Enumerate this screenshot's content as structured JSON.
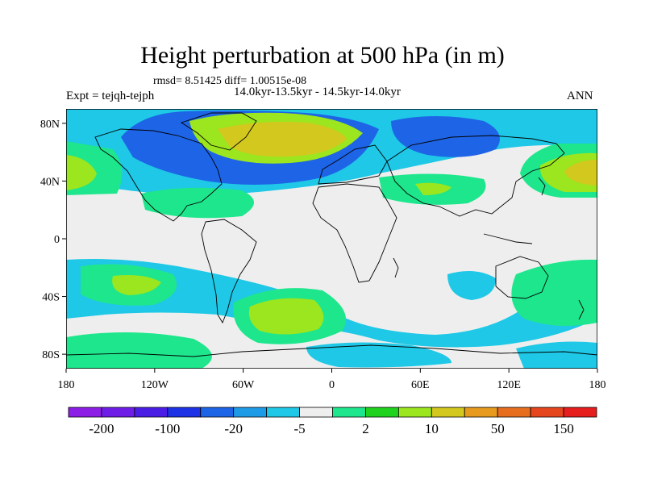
{
  "title": "Height perturbation at 500 hPa (in m)",
  "stats": "rmsd= 8.51425 diff= 1.00515e-08",
  "period": "14.0kyr-13.5kyr - 14.5kyr-14.0kyr",
  "experiment": "Expt = tejqh-tejph",
  "season": "ANN",
  "map": {
    "projection": "cylindrical-equidistant",
    "lon_range": [
      -180,
      180
    ],
    "lat_range": [
      -90,
      90
    ],
    "lat_tick_labels": [
      "80N",
      "40N",
      "0",
      "40S",
      "80S"
    ],
    "lat_tick_values": [
      80,
      40,
      0,
      -40,
      -80
    ],
    "lon_tick_labels": [
      "180",
      "120W",
      "60W",
      "0",
      "60E",
      "120E",
      "180"
    ],
    "lon_tick_values": [
      -180,
      -120,
      -60,
      0,
      60,
      120,
      180
    ],
    "background_color": "#eeeeee"
  },
  "colorbar": {
    "colors": [
      "#8c1ee6",
      "#6e1ee6",
      "#4b1ee6",
      "#1e32e6",
      "#1e64e6",
      "#1e9be6",
      "#1ec8e6",
      "#eeeeee",
      "#1ee68c",
      "#1ed21e",
      "#9be61e",
      "#d2c81e",
      "#e69b1e",
      "#e66e1e",
      "#e6461e",
      "#e61e1e"
    ],
    "labels": [
      "-200",
      "-100",
      "-20",
      "-5",
      "2",
      "10",
      "50",
      "150"
    ]
  }
}
